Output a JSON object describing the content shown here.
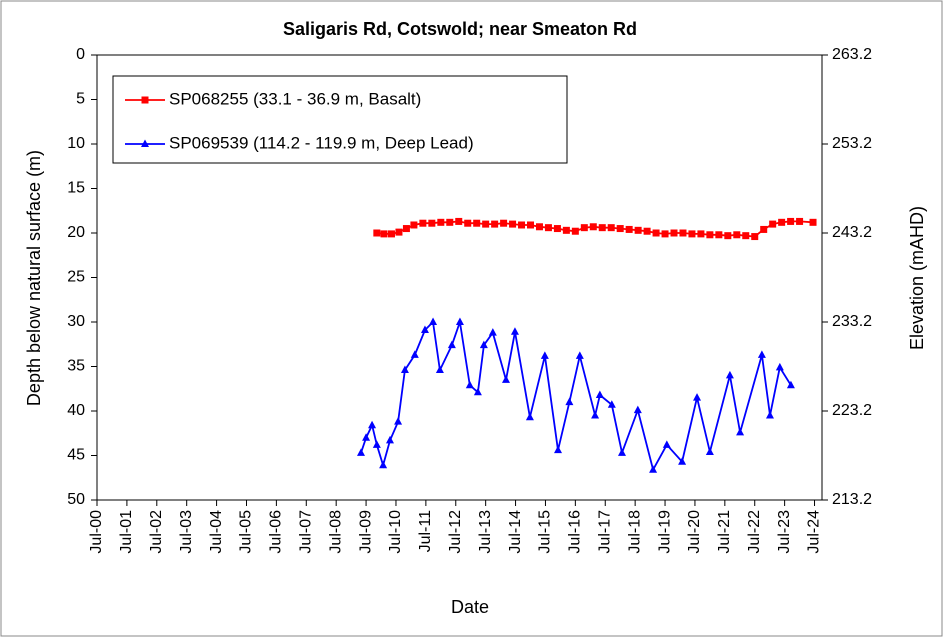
{
  "chart_data": {
    "type": "line",
    "title": "Saligaris Rd, Cotswold; near Smeaton Rd",
    "xlabel": "Date",
    "ylabel": "Depth below natural surface (m)",
    "y2label": "Elevation  (mAHD)",
    "xlim": [
      2000.5,
      2024.75
    ],
    "xticks": [
      {
        "value": 2000.5,
        "label": "Jul-00"
      },
      {
        "value": 2001.5,
        "label": "Jul-01"
      },
      {
        "value": 2002.5,
        "label": "Jul-02"
      },
      {
        "value": 2003.5,
        "label": "Jul-03"
      },
      {
        "value": 2004.5,
        "label": "Jul-04"
      },
      {
        "value": 2005.5,
        "label": "Jul-05"
      },
      {
        "value": 2006.5,
        "label": "Jul-06"
      },
      {
        "value": 2007.5,
        "label": "Jul-07"
      },
      {
        "value": 2008.5,
        "label": "Jul-08"
      },
      {
        "value": 2009.5,
        "label": "Jul-09"
      },
      {
        "value": 2010.5,
        "label": "Jul-10"
      },
      {
        "value": 2011.5,
        "label": "Jul-11"
      },
      {
        "value": 2012.5,
        "label": "Jul-12"
      },
      {
        "value": 2013.5,
        "label": "Jul-13"
      },
      {
        "value": 2014.5,
        "label": "Jul-14"
      },
      {
        "value": 2015.5,
        "label": "Jul-15"
      },
      {
        "value": 2016.5,
        "label": "Jul-16"
      },
      {
        "value": 2017.5,
        "label": "Jul-17"
      },
      {
        "value": 2018.5,
        "label": "Jul-18"
      },
      {
        "value": 2019.5,
        "label": "Jul-19"
      },
      {
        "value": 2020.5,
        "label": "Jul-20"
      },
      {
        "value": 2021.5,
        "label": "Jul-21"
      },
      {
        "value": 2022.5,
        "label": "Jul-22"
      },
      {
        "value": 2023.5,
        "label": "Jul-23"
      },
      {
        "value": 2024.5,
        "label": "Jul-24"
      }
    ],
    "ylim": [
      50,
      0
    ],
    "yticks": [
      0,
      5,
      10,
      15,
      20,
      25,
      30,
      35,
      40,
      45,
      50
    ],
    "y2lim": [
      213.2,
      263.2
    ],
    "y2ticks": [
      263.2,
      253.2,
      243.2,
      233.2,
      223.2,
      213.2
    ],
    "legend": "upper left",
    "series": [
      {
        "name": "SP068255 (33.1 - 36.9 m, Basalt)",
        "color": "#ff0000",
        "marker": "square",
        "x": [
          2009.86,
          2010.1,
          2010.35,
          2010.6,
          2010.85,
          2011.1,
          2011.4,
          2011.7,
          2012.0,
          2012.3,
          2012.6,
          2012.9,
          2013.2,
          2013.5,
          2013.8,
          2014.1,
          2014.4,
          2014.7,
          2015.0,
          2015.3,
          2015.6,
          2015.9,
          2016.2,
          2016.5,
          2016.8,
          2017.1,
          2017.4,
          2017.7,
          2018.0,
          2018.3,
          2018.6,
          2018.9,
          2019.2,
          2019.5,
          2019.8,
          2020.1,
          2020.4,
          2020.7,
          2021.0,
          2021.3,
          2021.6,
          2021.9,
          2022.2,
          2022.5,
          2022.8,
          2023.1,
          2023.4,
          2023.7,
          2024.0,
          2024.45
        ],
        "values": [
          20.0,
          20.1,
          20.1,
          19.9,
          19.5,
          19.1,
          18.9,
          18.9,
          18.8,
          18.8,
          18.7,
          18.9,
          18.9,
          19.0,
          19.0,
          18.9,
          19.0,
          19.1,
          19.1,
          19.3,
          19.4,
          19.5,
          19.7,
          19.8,
          19.4,
          19.3,
          19.4,
          19.4,
          19.5,
          19.6,
          19.7,
          19.8,
          20.0,
          20.1,
          20.0,
          20.0,
          20.1,
          20.1,
          20.2,
          20.2,
          20.3,
          20.2,
          20.3,
          20.4,
          19.6,
          19.0,
          18.8,
          18.7,
          18.7,
          18.8
        ]
      },
      {
        "name": "SP069539 (114.2 - 119.9 m, Deep Lead)",
        "color": "#0000ff",
        "marker": "triangle",
        "x": [
          2009.33,
          2009.5,
          2009.7,
          2009.86,
          2010.07,
          2010.3,
          2010.57,
          2010.8,
          2011.13,
          2011.47,
          2011.74,
          2011.97,
          2012.37,
          2012.64,
          2012.97,
          2013.24,
          2013.44,
          2013.74,
          2014.18,
          2014.48,
          2014.98,
          2015.48,
          2015.92,
          2016.3,
          2016.65,
          2017.16,
          2017.32,
          2017.72,
          2018.06,
          2018.59,
          2019.1,
          2019.56,
          2020.07,
          2020.57,
          2021.0,
          2021.67,
          2022.01,
          2022.74,
          2023.01,
          2023.34,
          2023.71
        ],
        "values": [
          44.7,
          43.0,
          41.6,
          43.8,
          46.1,
          43.3,
          41.2,
          35.4,
          33.7,
          30.9,
          30.0,
          35.4,
          32.6,
          30.0,
          37.1,
          37.9,
          32.6,
          31.2,
          36.5,
          31.1,
          40.7,
          33.8,
          44.4,
          39.0,
          33.8,
          40.5,
          38.2,
          39.3,
          44.7,
          39.9,
          46.6,
          43.8,
          45.7,
          38.5,
          44.6,
          36.0,
          42.4,
          33.7,
          40.5,
          35.1,
          37.1
        ]
      }
    ]
  }
}
